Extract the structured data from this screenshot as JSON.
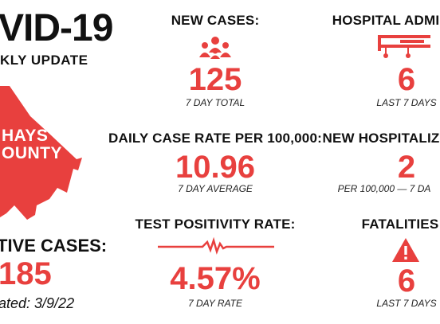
{
  "header": {
    "title": "VID-19",
    "subtitle": "KLY UPDATE"
  },
  "county": {
    "line1": "HAYS",
    "line2": "OUNTY"
  },
  "active_cases": {
    "label": "TIVE CASES:",
    "value": "185",
    "updated": "ated: 3/9/22"
  },
  "new_cases": {
    "label": "NEW CASES:",
    "value": "125",
    "note": "7 DAY TOTAL",
    "icon": "people-icon"
  },
  "daily_rate": {
    "label": "DAILY CASE RATE PER 100,000:",
    "value": "10.96",
    "note": "7 DAY AVERAGE"
  },
  "positivity": {
    "label": "TEST POSITIVITY RATE:",
    "value": "4.57%",
    "note": "7 DAY RATE",
    "icon": "pulse-line-icon"
  },
  "hospital_admits": {
    "label": "HOSPITAL ADMI",
    "value": "6",
    "note": "LAST 7 DAYS",
    "icon": "hospital-bed-icon"
  },
  "new_hosp": {
    "label": "NEW HOSPITALIZ",
    "value": "2",
    "note": "PER 100,000 — 7 DA"
  },
  "fatalities": {
    "label": "FATALITIES",
    "value": "6",
    "note": "LAST 7 DAYS",
    "icon": "warning-icon"
  },
  "colors": {
    "accent": "#e8403e",
    "text": "#111111"
  }
}
